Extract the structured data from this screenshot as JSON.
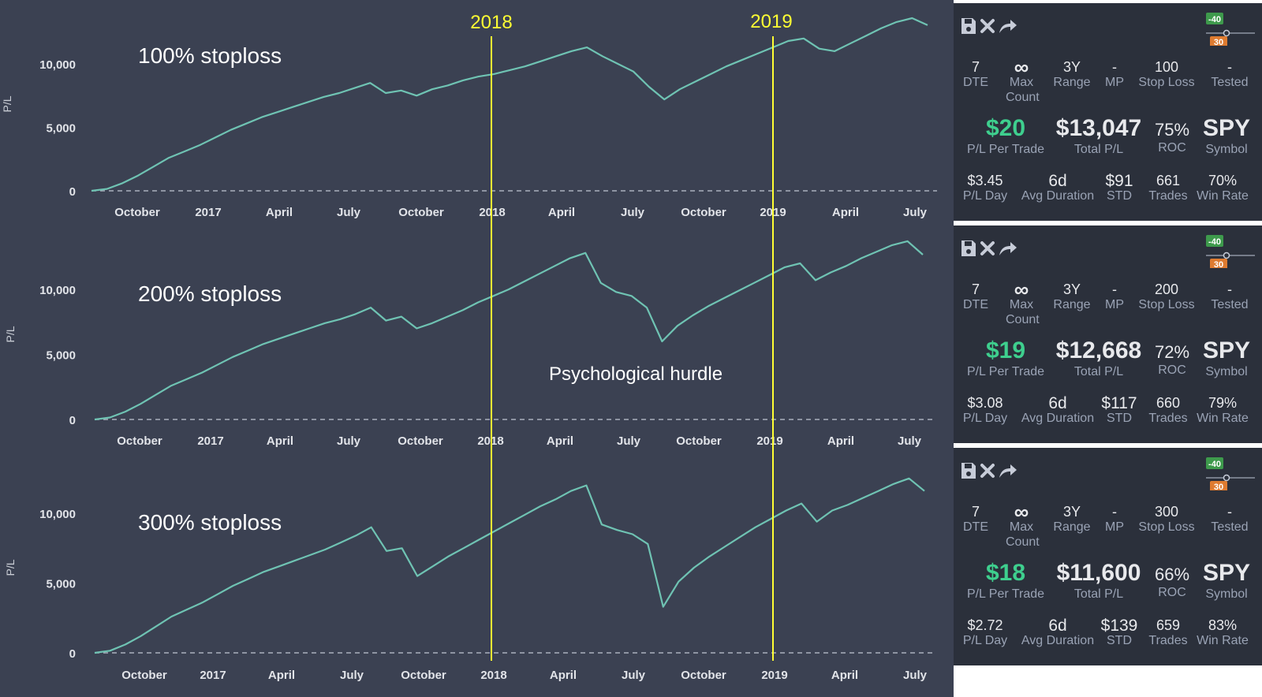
{
  "chart_data": [
    {
      "type": "line",
      "title": "100% stoploss",
      "ylabel": "P/L",
      "ylim": [
        -300,
        14200
      ],
      "yticks": [
        "0",
        "5,000",
        "10,000"
      ],
      "xticks": [
        "October",
        "2017",
        "April",
        "July",
        "October",
        "2018",
        "April",
        "July",
        "October",
        "2019",
        "April",
        "July"
      ],
      "grid": false,
      "series": [
        {
          "values": [
            0,
            150,
            600,
            1200,
            1900,
            2600,
            3100,
            3600,
            4200,
            4800,
            5300,
            5800,
            6200,
            6600,
            7000,
            7400,
            7700,
            8100,
            8500,
            7700,
            7900,
            7500,
            8000,
            8300,
            8700,
            9000,
            9200,
            9500,
            9800,
            10200,
            10600,
            11000,
            11300,
            10600,
            10000,
            9400,
            8200,
            7200,
            8000,
            8600,
            9200,
            9800,
            10300,
            10800,
            11300,
            11800,
            12000,
            11200,
            11000,
            11600,
            12200,
            12800,
            13300,
            13600,
            13047
          ]
        }
      ]
    },
    {
      "type": "line",
      "title": "200% stoploss",
      "ylabel": "P/L",
      "ylim": [
        -300,
        14200
      ],
      "yticks": [
        "0",
        "5,000",
        "10,000"
      ],
      "xticks": [
        "October",
        "2017",
        "April",
        "July",
        "October",
        "2018",
        "April",
        "July",
        "October",
        "2019",
        "April",
        "July"
      ],
      "grid": false,
      "series": [
        {
          "values": [
            0,
            150,
            600,
            1200,
            1900,
            2600,
            3100,
            3600,
            4200,
            4800,
            5300,
            5800,
            6200,
            6600,
            7000,
            7400,
            7700,
            8100,
            8600,
            7600,
            7900,
            7000,
            7400,
            7900,
            8400,
            9000,
            9500,
            10000,
            10600,
            11200,
            11800,
            12400,
            12800,
            10500,
            9800,
            9500,
            8600,
            6000,
            7200,
            8000,
            8700,
            9300,
            9900,
            10500,
            11100,
            11700,
            12000,
            10700,
            11300,
            11800,
            12400,
            12900,
            13400,
            13700,
            12668
          ]
        }
      ]
    },
    {
      "type": "line",
      "title": "300% stoploss",
      "ylabel": "P/L",
      "ylim": [
        -300,
        14200
      ],
      "yticks": [
        "0",
        "5,000",
        "10,000"
      ],
      "xticks": [
        "October",
        "2017",
        "April",
        "July",
        "October",
        "2018",
        "April",
        "July",
        "October",
        "2019",
        "April",
        "July"
      ],
      "grid": false,
      "series": [
        {
          "values": [
            0,
            150,
            600,
            1200,
            1900,
            2600,
            3100,
            3600,
            4200,
            4800,
            5300,
            5800,
            6200,
            6600,
            7000,
            7400,
            7900,
            8400,
            9000,
            7300,
            7500,
            5500,
            6200,
            6900,
            7500,
            8100,
            8700,
            9300,
            9900,
            10500,
            11000,
            11600,
            12000,
            9200,
            8800,
            8500,
            7800,
            3300,
            5100,
            6100,
            6900,
            7600,
            8300,
            9000,
            9600,
            10200,
            10700,
            9400,
            10200,
            10600,
            11100,
            11600,
            12100,
            12500,
            11600
          ]
        }
      ]
    }
  ],
  "annotations": {
    "year_2018": "2018",
    "year_2019": "2019",
    "hurdle": "Psychological hurdle",
    "line_color": "#ffff33"
  },
  "colors": {
    "background": "#3b4152",
    "panel": "#2b303b",
    "line": "#6fc3b3",
    "green": "#3ecf8e",
    "badge_green": "#3e9a4c",
    "badge_orange": "#de7b30"
  },
  "toolbar_icons": [
    "save-icon",
    "close-icon",
    "share-icon"
  ],
  "slider": {
    "upper": "-40",
    "lower": "30"
  },
  "panels": [
    {
      "row1": [
        {
          "v": "7",
          "l": "DTE"
        },
        {
          "v": "∞",
          "l": "Max Count"
        },
        {
          "v": "3Y",
          "l": "Range"
        },
        {
          "v": "-",
          "l": "MP"
        },
        {
          "v": "100",
          "l": "Stop Loss"
        },
        {
          "v": "-",
          "l": "Tested"
        }
      ],
      "row2": [
        {
          "v": "$20",
          "l": "P/L Per Trade"
        },
        {
          "v": "$13,047",
          "l": "Total P/L"
        },
        {
          "v": "75%",
          "l": "ROC"
        },
        {
          "v": "SPY",
          "l": "Symbol"
        }
      ],
      "row3": [
        {
          "v": "$3.45",
          "l": "P/L Day"
        },
        {
          "v": "6d",
          "l": "Avg Duration"
        },
        {
          "v": "$91",
          "l": "STD"
        },
        {
          "v": "661",
          "l": "Trades"
        },
        {
          "v": "70%",
          "l": "Win Rate"
        }
      ]
    },
    {
      "row1": [
        {
          "v": "7",
          "l": "DTE"
        },
        {
          "v": "∞",
          "l": "Max Count"
        },
        {
          "v": "3Y",
          "l": "Range"
        },
        {
          "v": "-",
          "l": "MP"
        },
        {
          "v": "200",
          "l": "Stop Loss"
        },
        {
          "v": "-",
          "l": "Tested"
        }
      ],
      "row2": [
        {
          "v": "$19",
          "l": "P/L Per Trade"
        },
        {
          "v": "$12,668",
          "l": "Total P/L"
        },
        {
          "v": "72%",
          "l": "ROC"
        },
        {
          "v": "SPY",
          "l": "Symbol"
        }
      ],
      "row3": [
        {
          "v": "$3.08",
          "l": "P/L Day"
        },
        {
          "v": "6d",
          "l": "Avg Duration"
        },
        {
          "v": "$117",
          "l": "STD"
        },
        {
          "v": "660",
          "l": "Trades"
        },
        {
          "v": "79%",
          "l": "Win Rate"
        }
      ]
    },
    {
      "row1": [
        {
          "v": "7",
          "l": "DTE"
        },
        {
          "v": "∞",
          "l": "Max Count"
        },
        {
          "v": "3Y",
          "l": "Range"
        },
        {
          "v": "-",
          "l": "MP"
        },
        {
          "v": "300",
          "l": "Stop Loss"
        },
        {
          "v": "-",
          "l": "Tested"
        }
      ],
      "row2": [
        {
          "v": "$18",
          "l": "P/L Per Trade"
        },
        {
          "v": "$11,600",
          "l": "Total P/L"
        },
        {
          "v": "66%",
          "l": "ROC"
        },
        {
          "v": "SPY",
          "l": "Symbol"
        }
      ],
      "row3": [
        {
          "v": "$2.72",
          "l": "P/L Day"
        },
        {
          "v": "6d",
          "l": "Avg Duration"
        },
        {
          "v": "$139",
          "l": "STD"
        },
        {
          "v": "659",
          "l": "Trades"
        },
        {
          "v": "83%",
          "l": "Win Rate"
        }
      ]
    }
  ]
}
